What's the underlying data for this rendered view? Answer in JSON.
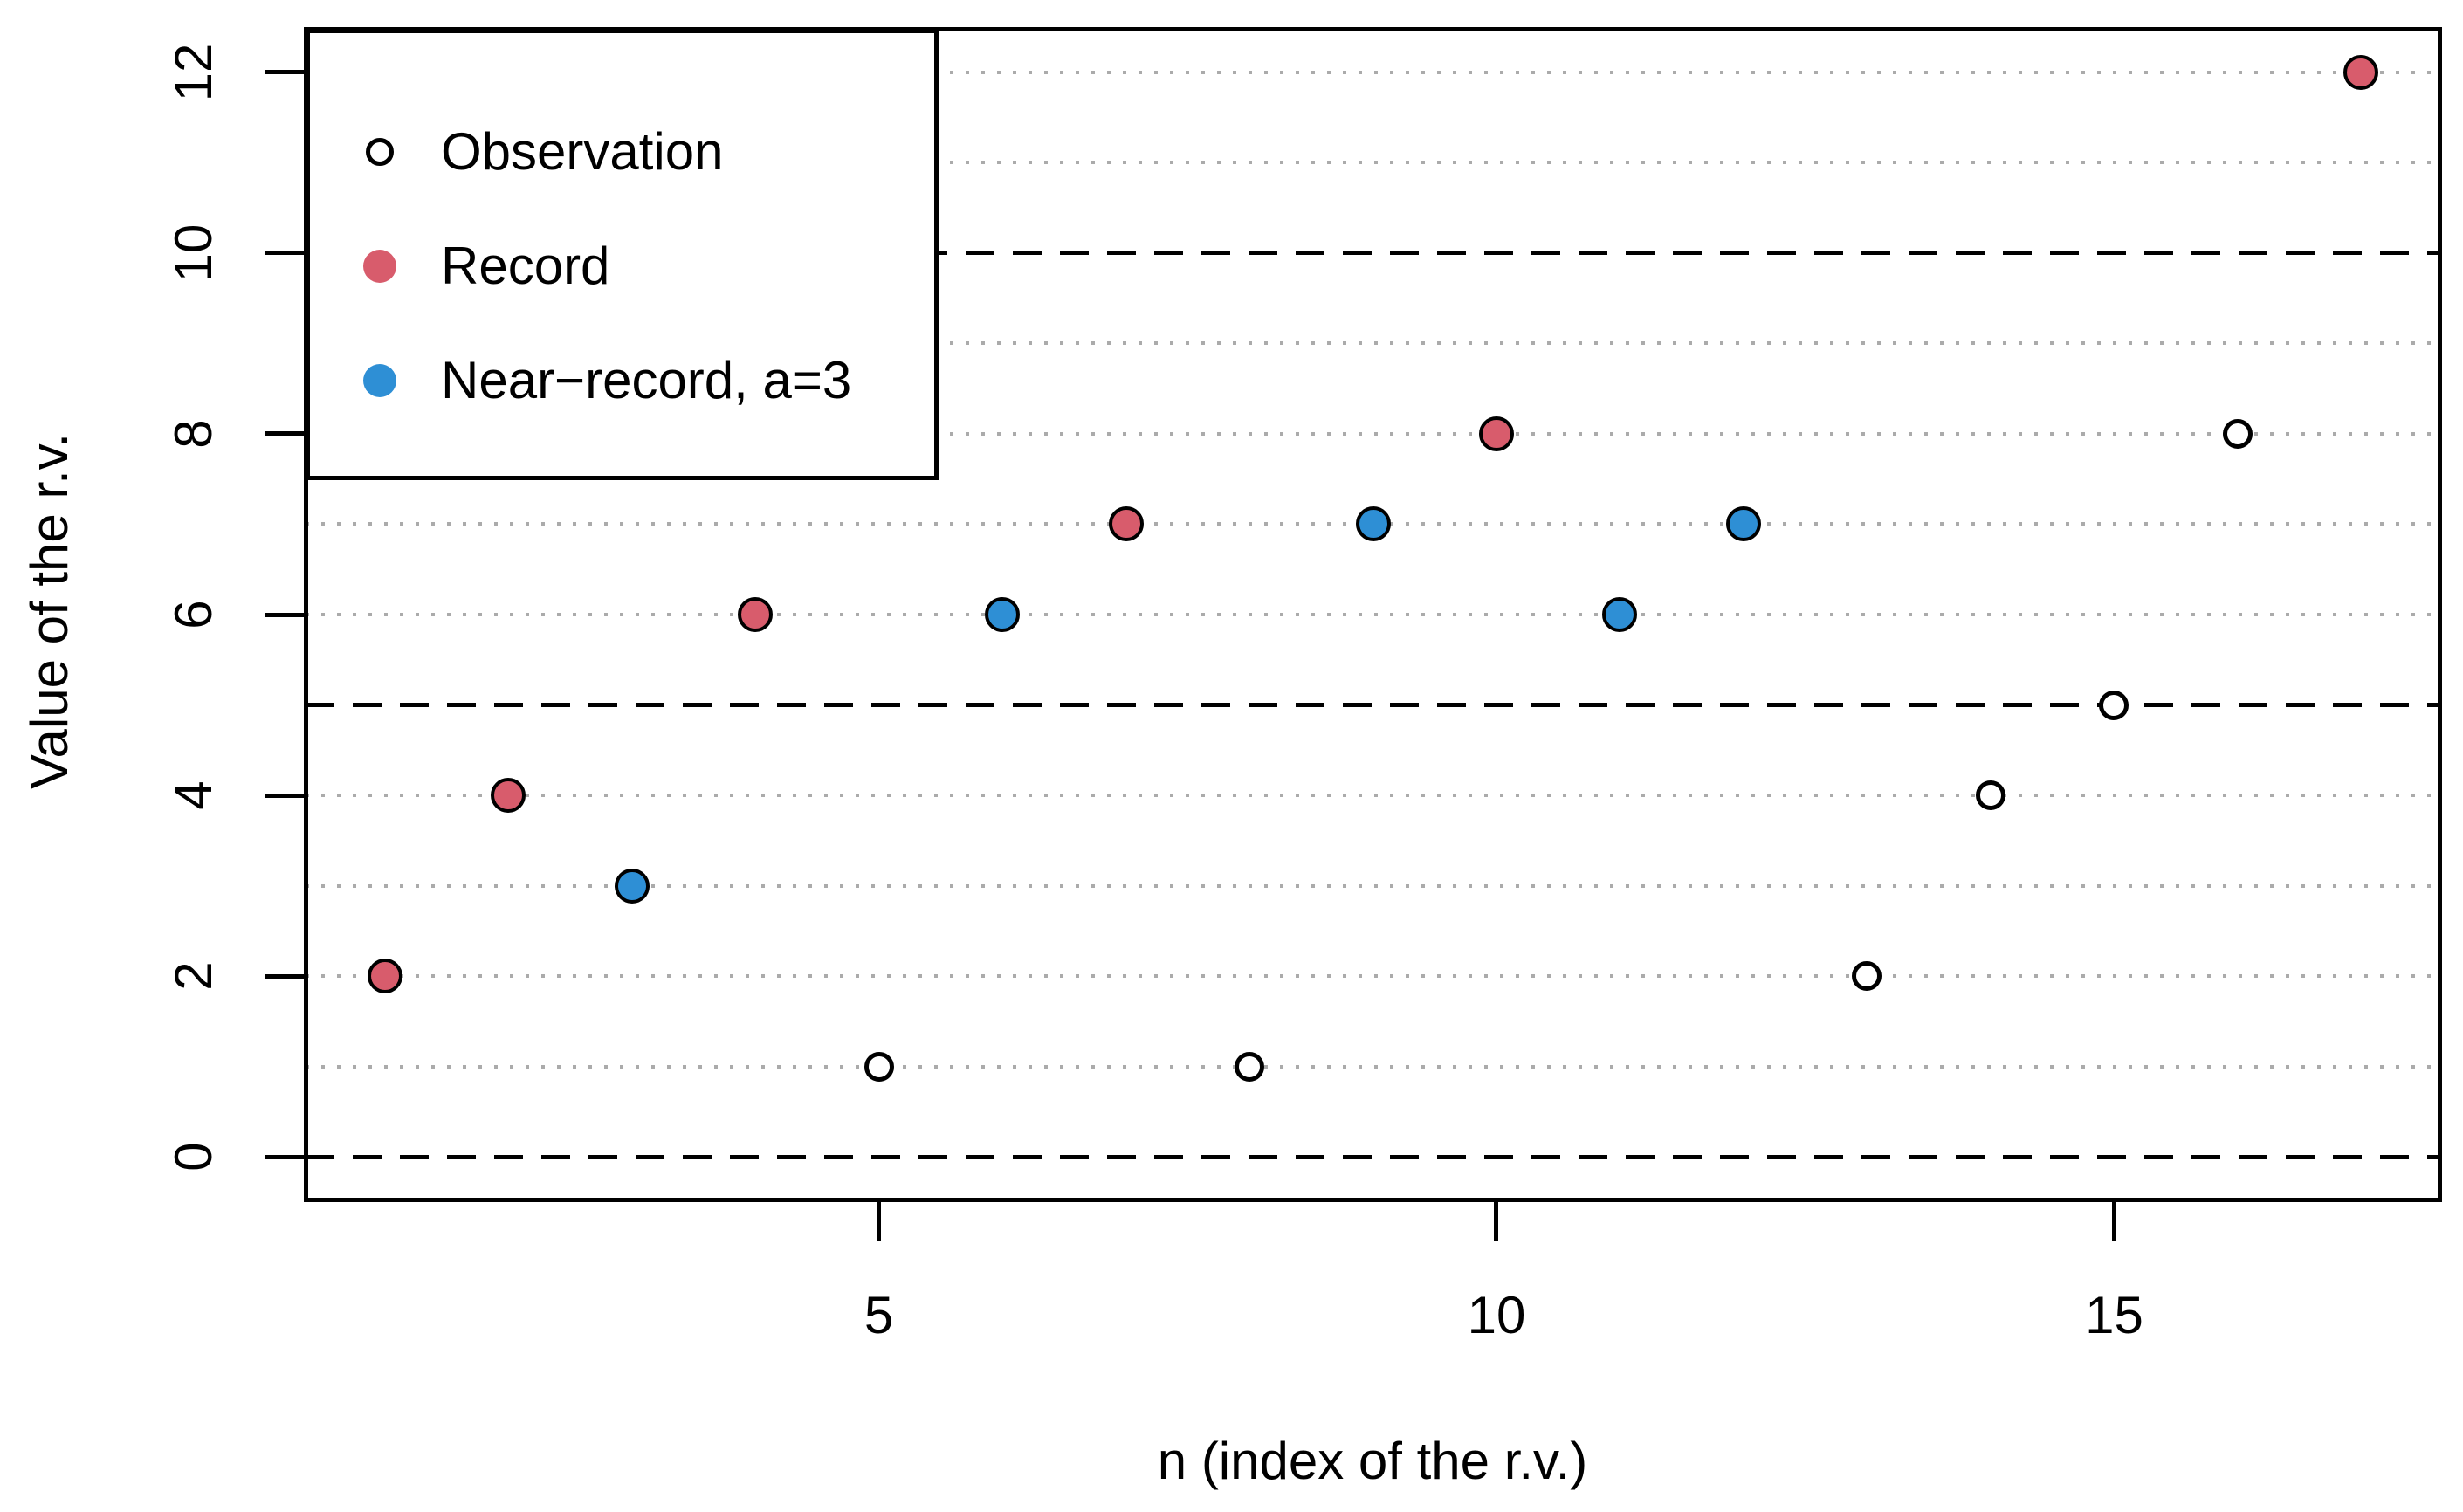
{
  "figure": {
    "background": "#FFFFFF"
  },
  "colors": {
    "record_fill": "#D85C6C",
    "near_record_fill": "#2E8FD5",
    "observation_fill": "#FFFFFF",
    "point_stroke": "#000000",
    "grid_dotted": "#ABABAB",
    "grid_dashed": "#000000",
    "axis": "#000000",
    "text": "#000000"
  },
  "legend": {
    "position": "topleft",
    "entries": [
      {
        "label": "Observation",
        "marker": "open-circle",
        "fill": "#FFFFFF",
        "stroke": "#000000"
      },
      {
        "label": "Record",
        "marker": "filled-circle",
        "fill": "#D85C6C",
        "stroke": "#D85C6C"
      },
      {
        "label": "Near−record, a=3",
        "marker": "filled-circle",
        "fill": "#2E8FD5",
        "stroke": "#2E8FD5"
      }
    ]
  },
  "chart_data": {
    "type": "scatter",
    "title": "",
    "xlabel": "n (index of the r.v.)",
    "ylabel": "Value of the r.v.",
    "xlim": [
      0.36,
      17.64
    ],
    "ylim": [
      -0.48,
      12.48
    ],
    "x_ticks": [
      5,
      10,
      15
    ],
    "y_ticks": [
      0,
      2,
      4,
      6,
      8,
      10,
      12
    ],
    "grid": {
      "dashed_at": [
        0,
        5,
        10
      ],
      "dotted_at": [
        1,
        2,
        3,
        4,
        6,
        7,
        8,
        9,
        11,
        12
      ]
    },
    "legend_position": "topleft",
    "points": [
      {
        "n": 1,
        "value": 2,
        "type": "record"
      },
      {
        "n": 2,
        "value": 4,
        "type": "record"
      },
      {
        "n": 3,
        "value": 3,
        "type": "near_record"
      },
      {
        "n": 4,
        "value": 6,
        "type": "record"
      },
      {
        "n": 5,
        "value": 1,
        "type": "observation"
      },
      {
        "n": 6,
        "value": 6,
        "type": "near_record"
      },
      {
        "n": 7,
        "value": 7,
        "type": "record"
      },
      {
        "n": 8,
        "value": 1,
        "type": "observation"
      },
      {
        "n": 9,
        "value": 7,
        "type": "near_record"
      },
      {
        "n": 10,
        "value": 8,
        "type": "record"
      },
      {
        "n": 11,
        "value": 6,
        "type": "near_record"
      },
      {
        "n": 12,
        "value": 7,
        "type": "near_record"
      },
      {
        "n": 13,
        "value": 2,
        "type": "observation"
      },
      {
        "n": 14,
        "value": 4,
        "type": "observation"
      },
      {
        "n": 15,
        "value": 5,
        "type": "observation"
      },
      {
        "n": 16,
        "value": 8,
        "type": "observation"
      },
      {
        "n": 17,
        "value": 12,
        "type": "record"
      }
    ],
    "series": [
      {
        "name": "Observation",
        "x": [
          5,
          8,
          13,
          14,
          15,
          16
        ],
        "y": [
          1,
          1,
          2,
          4,
          5,
          8
        ]
      },
      {
        "name": "Record",
        "x": [
          1,
          2,
          4,
          7,
          10,
          17
        ],
        "y": [
          2,
          4,
          6,
          7,
          8,
          12
        ]
      },
      {
        "name": "Near−record, a=3",
        "x": [
          3,
          6,
          9,
          11,
          12
        ],
        "y": [
          3,
          6,
          7,
          6,
          7
        ]
      }
    ]
  }
}
